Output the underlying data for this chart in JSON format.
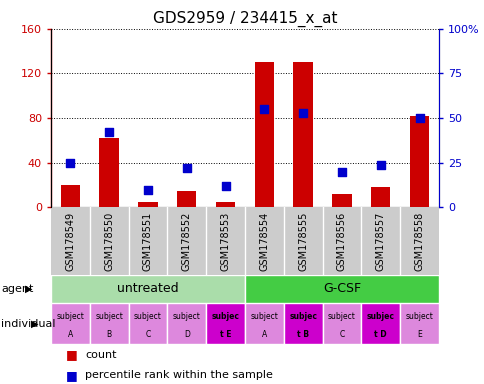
{
  "title": "GDS2959 / 234415_x_at",
  "samples": [
    "GSM178549",
    "GSM178550",
    "GSM178551",
    "GSM178552",
    "GSM178553",
    "GSM178554",
    "GSM178555",
    "GSM178556",
    "GSM178557",
    "GSM178558"
  ],
  "counts": [
    20,
    62,
    5,
    15,
    5,
    130,
    130,
    12,
    18,
    82
  ],
  "percentiles": [
    25,
    42,
    10,
    22,
    12,
    55,
    53,
    20,
    24,
    50
  ],
  "ylim_left": [
    0,
    160
  ],
  "ylim_right": [
    0,
    100
  ],
  "yticks_left": [
    0,
    40,
    80,
    120,
    160
  ],
  "yticks_right": [
    0,
    25,
    50,
    75,
    100
  ],
  "yticklabels_left": [
    "0",
    "40",
    "80",
    "120",
    "160"
  ],
  "yticklabels_right": [
    "0",
    "25",
    "50",
    "75",
    "100%"
  ],
  "bar_color": "#cc0000",
  "dot_color": "#0000cc",
  "bar_width": 0.5,
  "dot_size": 40,
  "bg_color": "#cccccc",
  "agent_untreated_color": "#aaddaa",
  "agent_gcsf_color": "#44cc44",
  "indiv_normal_color": "#dd88dd",
  "indiv_bold_color": "#cc00cc",
  "bold_indices": [
    4,
    6,
    8
  ],
  "indiv_labels_line1": [
    "subject",
    "subject",
    "subject",
    "subject",
    "subjec",
    "subject",
    "subjec",
    "subject",
    "subjec",
    "subject"
  ],
  "indiv_labels_line2": [
    "A",
    "B",
    "C",
    "D",
    "t E",
    "A",
    "t B",
    "C",
    "t D",
    "E"
  ],
  "title_fontsize": 11
}
